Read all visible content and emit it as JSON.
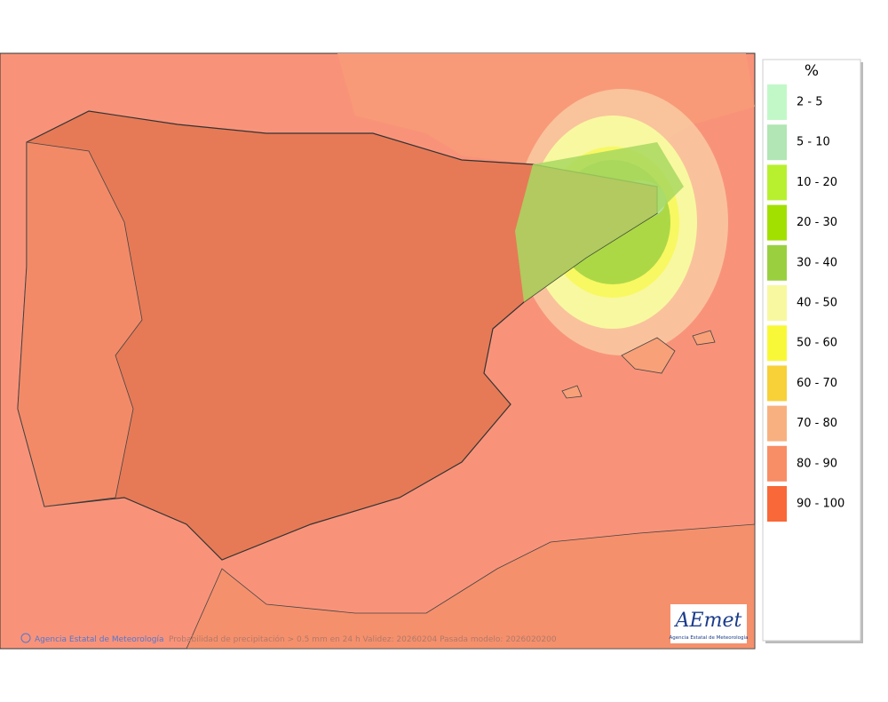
{
  "legend": {
    "title": "%",
    "items": [
      {
        "label": "2 - 5",
        "color": "#c2f8c8"
      },
      {
        "label": "5 - 10",
        "color": "#b2e6b4"
      },
      {
        "label": "10 - 20",
        "color": "#b8f030"
      },
      {
        "label": "20 - 30",
        "color": "#a2e000"
      },
      {
        "label": "30 - 40",
        "color": "#9ad040"
      },
      {
        "label": "40 - 50",
        "color": "#f8f8a0"
      },
      {
        "label": "50 - 60",
        "color": "#f8f838"
      },
      {
        "label": "60 - 70",
        "color": "#f8d038"
      },
      {
        "label": "70 - 80",
        "color": "#f8b080"
      },
      {
        "label": "80 - 90",
        "color": "#f88e66"
      },
      {
        "label": "90 - 100",
        "color": "#f86838"
      }
    ]
  },
  "footer": {
    "credit": "Agencia Estatal de Meteorología",
    "caption": "Probabilidad de precipitación > 0.5 mm en 24 h Validez: 20260204 Pasada modelo: 2026020200"
  },
  "logo": {
    "name": "AEmet",
    "subtitle": "Agencia Estatal de Meteorología"
  }
}
